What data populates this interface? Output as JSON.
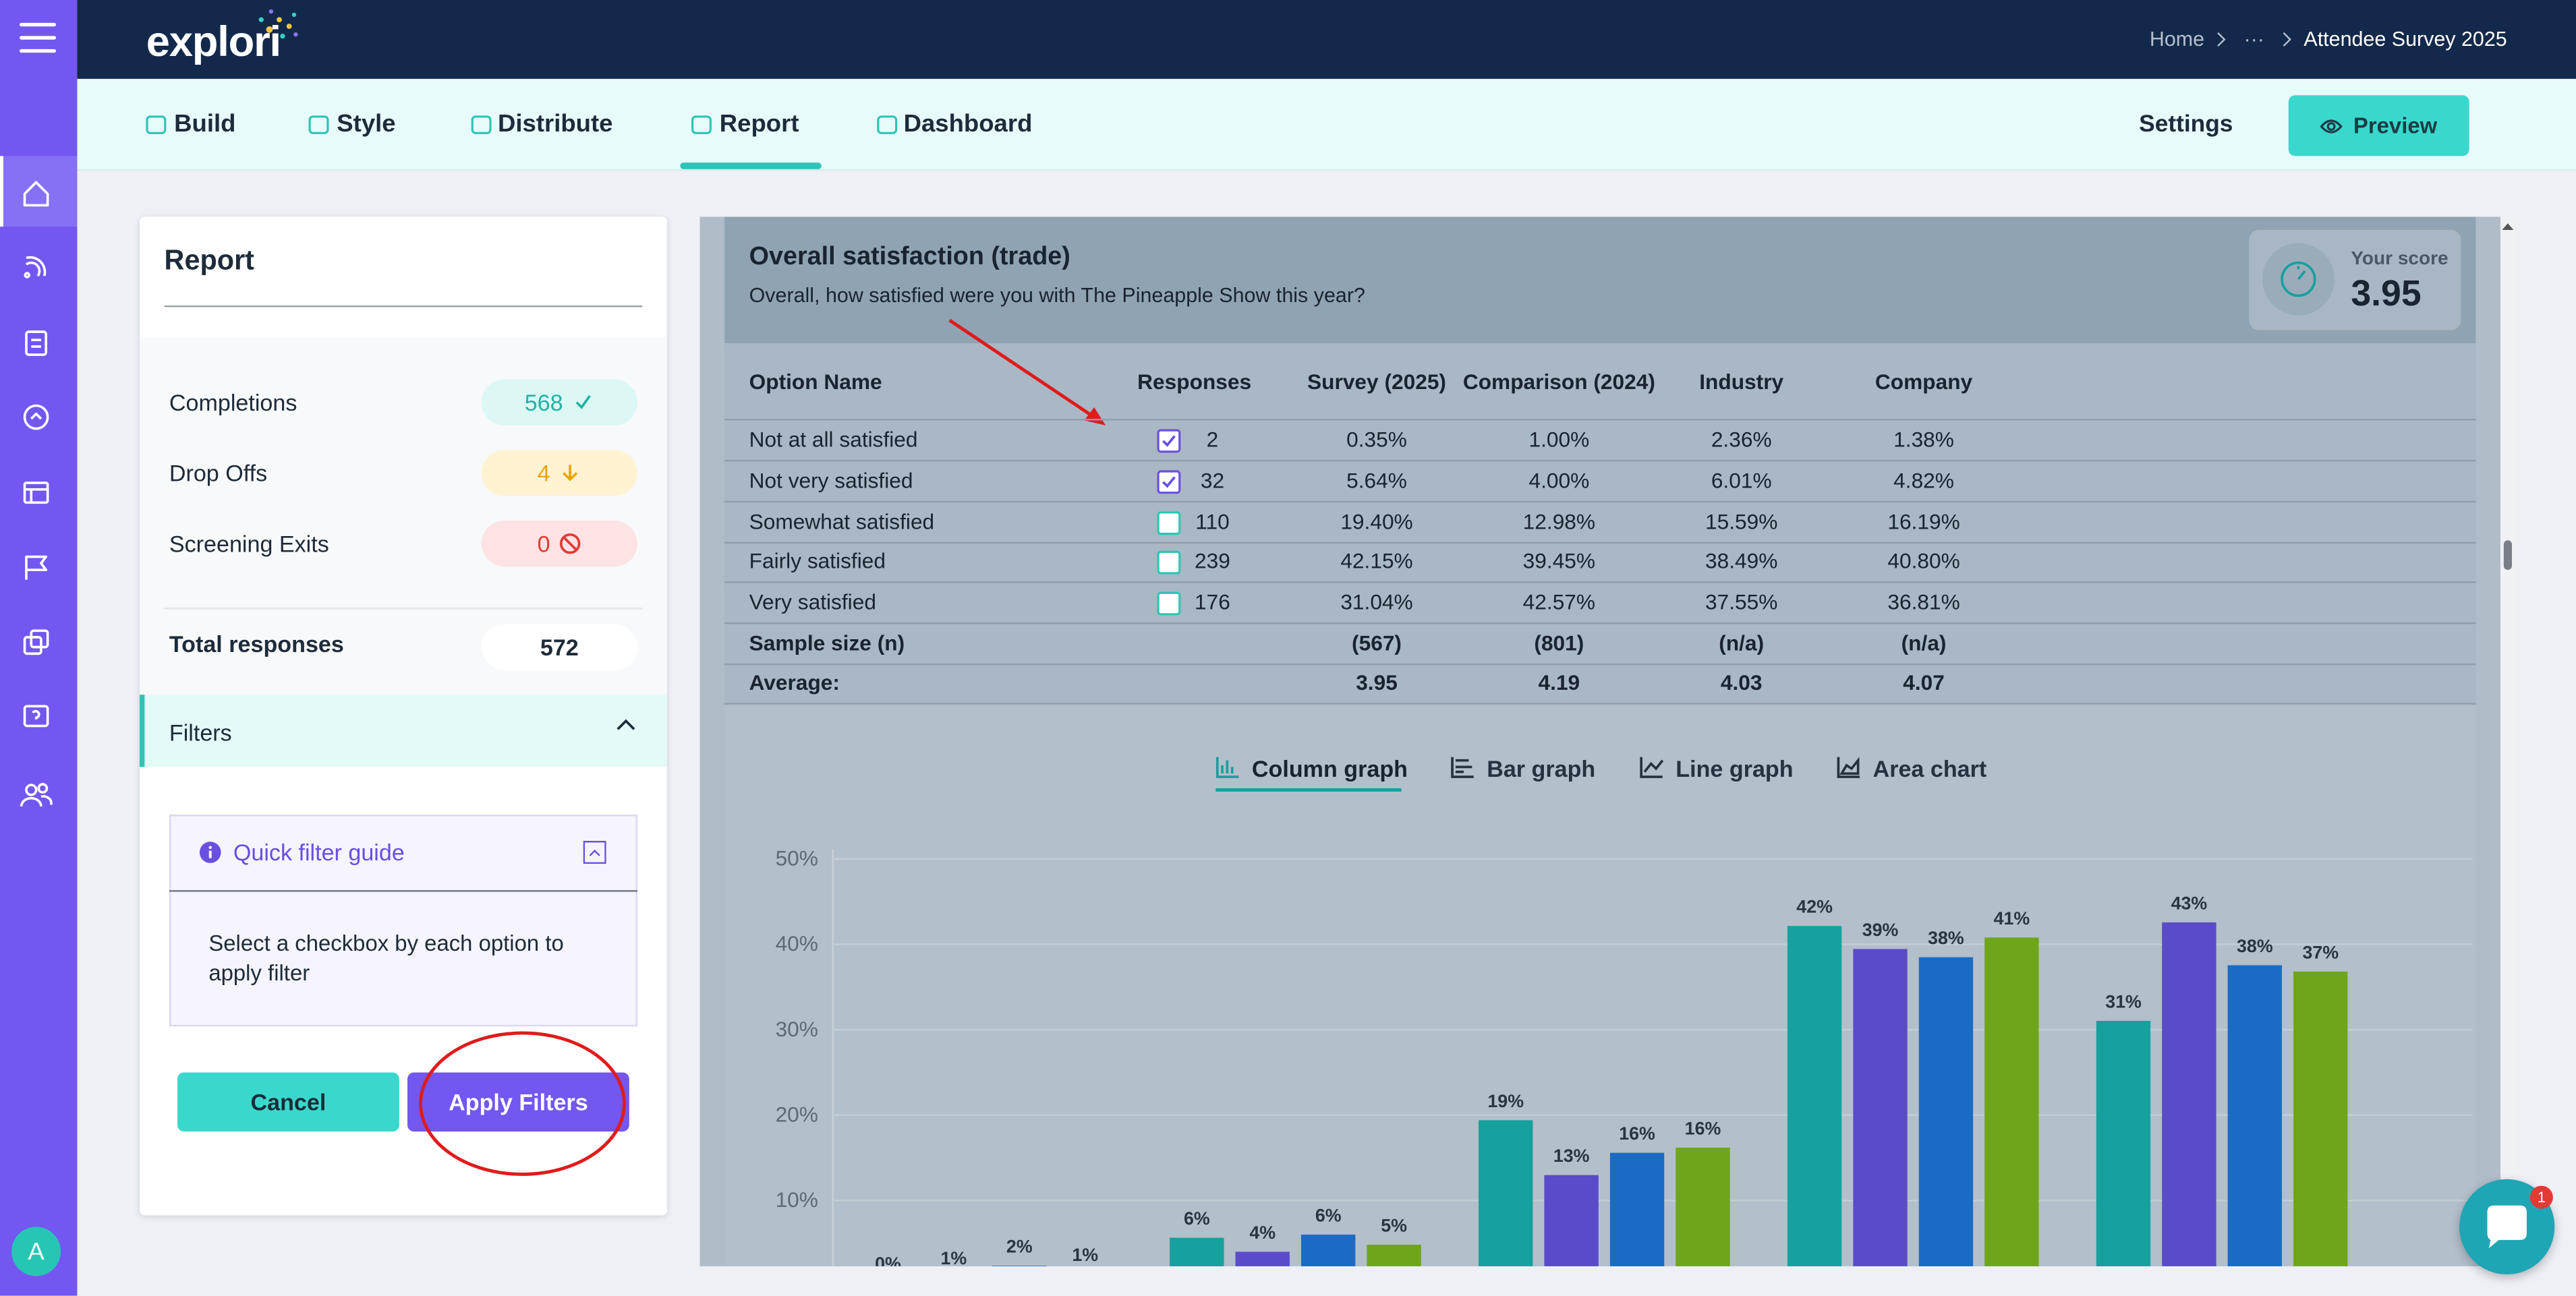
{
  "top_bar": {
    "logo": "explori",
    "breadcrumb": [
      "Home",
      "···",
      "Attendee Survey 2025"
    ]
  },
  "tabs": [
    "Build",
    "Style",
    "Distribute",
    "Report",
    "Dashboard"
  ],
  "settings": "Settings",
  "preview": "Preview",
  "report_panel": {
    "title": "Report",
    "stats": [
      {
        "label": "Completions",
        "value": "568"
      },
      {
        "label": "Drop Offs",
        "value": "4"
      },
      {
        "label": "Screening Exits",
        "value": "0"
      }
    ],
    "total": {
      "label": "Total responses",
      "value": "572"
    },
    "filters": "Filters",
    "guide": {
      "title": "Quick filter guide",
      "text": "Select a checkbox by each option to apply filter"
    },
    "cancel": "Cancel",
    "apply": "Apply Filters"
  },
  "question": {
    "title": "Overall satisfaction (trade)",
    "text": "Overall, how satisfied were you with The Pineapple Show this year?",
    "score_label": "Your score",
    "score": "3.95"
  },
  "table": {
    "header": [
      "Option Name",
      "Responses",
      "Survey (2025)",
      "Comparison (2024)",
      "Industry",
      "Company"
    ],
    "rows": [
      {
        "name": "Not at all satisfied",
        "checked": true,
        "responses": "2",
        "values": [
          "0.35%",
          "1.00%",
          "2.36%",
          "1.38%"
        ]
      },
      {
        "name": "Not very satisfied",
        "checked": true,
        "responses": "32",
        "values": [
          "5.64%",
          "4.00%",
          "6.01%",
          "4.82%"
        ]
      },
      {
        "name": "Somewhat satisfied",
        "checked": false,
        "responses": "110",
        "values": [
          "19.40%",
          "12.98%",
          "15.59%",
          "16.19%"
        ]
      },
      {
        "name": "Fairly satisfied",
        "checked": false,
        "responses": "239",
        "values": [
          "42.15%",
          "39.45%",
          "38.49%",
          "40.80%"
        ]
      },
      {
        "name": "Very satisfied",
        "checked": false,
        "responses": "176",
        "values": [
          "31.04%",
          "42.57%",
          "37.55%",
          "36.81%"
        ]
      }
    ],
    "summary": [
      {
        "label": "Sample size (n)",
        "values": [
          "(567)",
          "(801)",
          "(n/a)",
          "(n/a)"
        ]
      },
      {
        "label": "Average:",
        "values": [
          "3.95",
          "4.19",
          "4.03",
          "4.07"
        ]
      }
    ]
  },
  "graph_tabs": [
    "Column graph",
    "Bar graph",
    "Line graph",
    "Area chart"
  ],
  "avatar": "A",
  "chat_badge": "1",
  "chart_data": {
    "type": "bar",
    "ylim": [
      0,
      50
    ],
    "yticks": [
      {
        "value": 10,
        "label": "10%"
      },
      {
        "value": 20,
        "label": "20%"
      },
      {
        "value": 30,
        "label": "30%"
      },
      {
        "value": 40,
        "label": "40%"
      },
      {
        "value": 50,
        "label": "50%"
      }
    ],
    "grid": true,
    "series": [
      {
        "color": "#16a09e",
        "values": [
          0.35,
          5.64,
          19.4,
          42.15,
          31.04
        ],
        "value_labels": [
          "0%",
          "6%",
          "19%",
          "42%",
          "31%"
        ]
      },
      {
        "color": "#5a4bc8",
        "values": [
          1.0,
          4.0,
          12.98,
          39.45,
          42.57
        ],
        "value_labels": [
          "1%",
          "4%",
          "13%",
          "39%",
          "43%"
        ]
      },
      {
        "color": "#1b6bc5",
        "values": [
          2.36,
          6.01,
          15.59,
          38.49,
          37.55
        ],
        "value_labels": [
          "2%",
          "6%",
          "16%",
          "38%",
          "38%"
        ]
      },
      {
        "color": "#6ea51a",
        "values": [
          1.38,
          4.82,
          16.19,
          40.8,
          36.81
        ],
        "value_labels": [
          "1%",
          "5%",
          "16%",
          "41%",
          "37%"
        ]
      }
    ]
  }
}
